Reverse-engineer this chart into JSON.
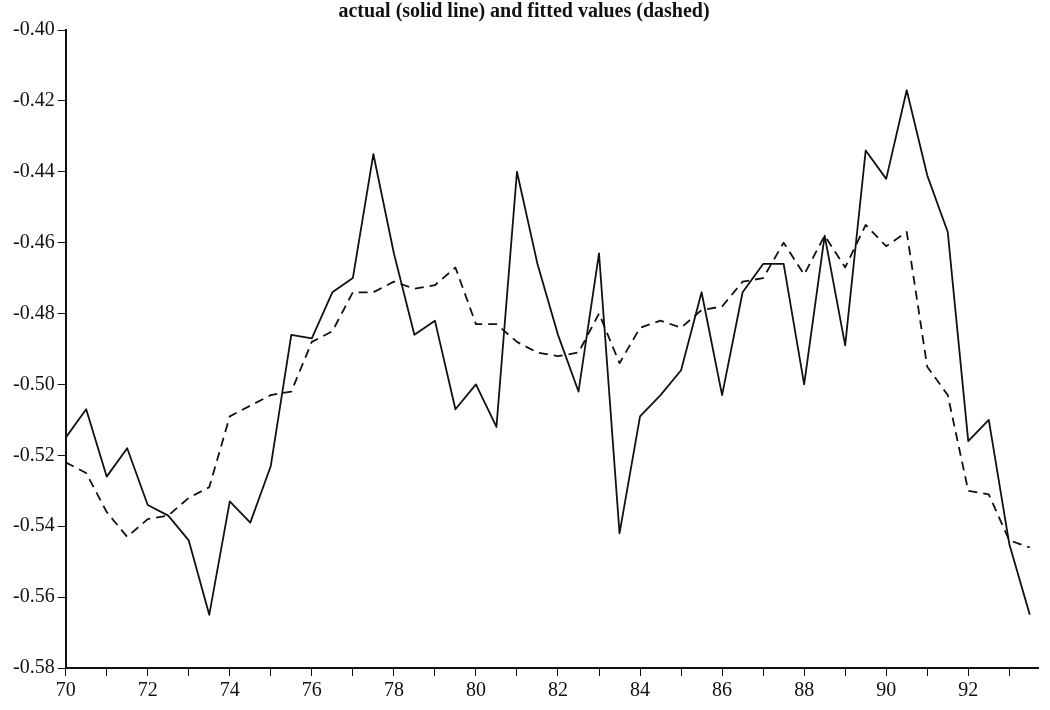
{
  "chart_data": {
    "type": "line",
    "title": "actual (solid line) and fitted values (dashed)",
    "x": [
      70,
      70.5,
      71,
      71.5,
      72,
      72.5,
      73,
      73.5,
      74,
      74.5,
      75,
      75.5,
      76,
      76.5,
      77,
      77.5,
      78,
      78.5,
      79,
      79.5,
      80,
      80.5,
      81,
      81.5,
      82,
      82.5,
      83,
      83.5,
      84,
      84.5,
      85,
      85.5,
      86,
      86.5,
      87,
      87.5,
      88,
      88.5,
      89,
      89.5,
      90,
      90.5,
      91,
      91.5,
      92,
      92.5,
      93,
      93.5
    ],
    "series": [
      {
        "color": "#111111",
        "line_style": "solid",
        "values": [
          -0.515,
          -0.507,
          -0.526,
          -0.518,
          -0.534,
          -0.537,
          -0.544,
          -0.565,
          -0.533,
          -0.539,
          -0.523,
          -0.486,
          -0.487,
          -0.474,
          -0.47,
          -0.435,
          -0.463,
          -0.486,
          -0.482,
          -0.507,
          -0.5,
          -0.512,
          -0.44,
          -0.466,
          -0.486,
          -0.502,
          -0.463,
          -0.542,
          -0.509,
          -0.503,
          -0.496,
          -0.474,
          -0.503,
          -0.474,
          -0.466,
          -0.466,
          -0.5,
          -0.458,
          -0.489,
          -0.434,
          -0.442,
          -0.417,
          -0.441,
          -0.457,
          -0.516,
          -0.51,
          -0.545,
          -0.565
        ]
      },
      {
        "color": "#111111",
        "line_style": "dashed",
        "values": [
          -0.522,
          -0.525,
          -0.536,
          -0.543,
          -0.538,
          -0.537,
          -0.532,
          -0.529,
          -0.509,
          -0.506,
          -0.503,
          -0.502,
          -0.488,
          -0.485,
          -0.474,
          -0.474,
          -0.471,
          -0.473,
          -0.472,
          -0.467,
          -0.483,
          -0.483,
          -0.488,
          -0.491,
          -0.492,
          -0.491,
          -0.48,
          -0.494,
          -0.484,
          -0.482,
          -0.484,
          -0.479,
          -0.478,
          -0.471,
          -0.47,
          -0.46,
          -0.469,
          -0.458,
          -0.467,
          -0.455,
          -0.461,
          -0.457,
          -0.495,
          -0.503,
          -0.53,
          -0.531,
          -0.544,
          -0.546
        ]
      }
    ],
    "xlim": [
      70,
      93.7
    ],
    "xticks": [
      70,
      {
        "value": 71,
        "label": null
      },
      72,
      {
        "value": 73,
        "label": null
      },
      74,
      {
        "value": 75,
        "label": null
      },
      76,
      {
        "value": 77,
        "label": null
      },
      78,
      {
        "value": 79,
        "label": null
      },
      80,
      {
        "value": 81,
        "label": null
      },
      82,
      {
        "value": 83,
        "label": null
      },
      84,
      {
        "value": 85,
        "label": null
      },
      86,
      {
        "value": 87,
        "label": null
      },
      88,
      {
        "value": 89,
        "label": null
      },
      90,
      {
        "value": 91,
        "label": null
      },
      92,
      {
        "value": 93,
        "label": null
      }
    ],
    "ylim": [
      -0.58,
      -0.4
    ],
    "yticks": [
      {
        "value": -0.4,
        "label": "-0.40"
      },
      -0.42,
      -0.44,
      -0.46,
      -0.48,
      {
        "value": -0.5,
        "label": "-0.50"
      },
      -0.52,
      -0.54,
      -0.56,
      -0.58
    ],
    "grid": false
  }
}
